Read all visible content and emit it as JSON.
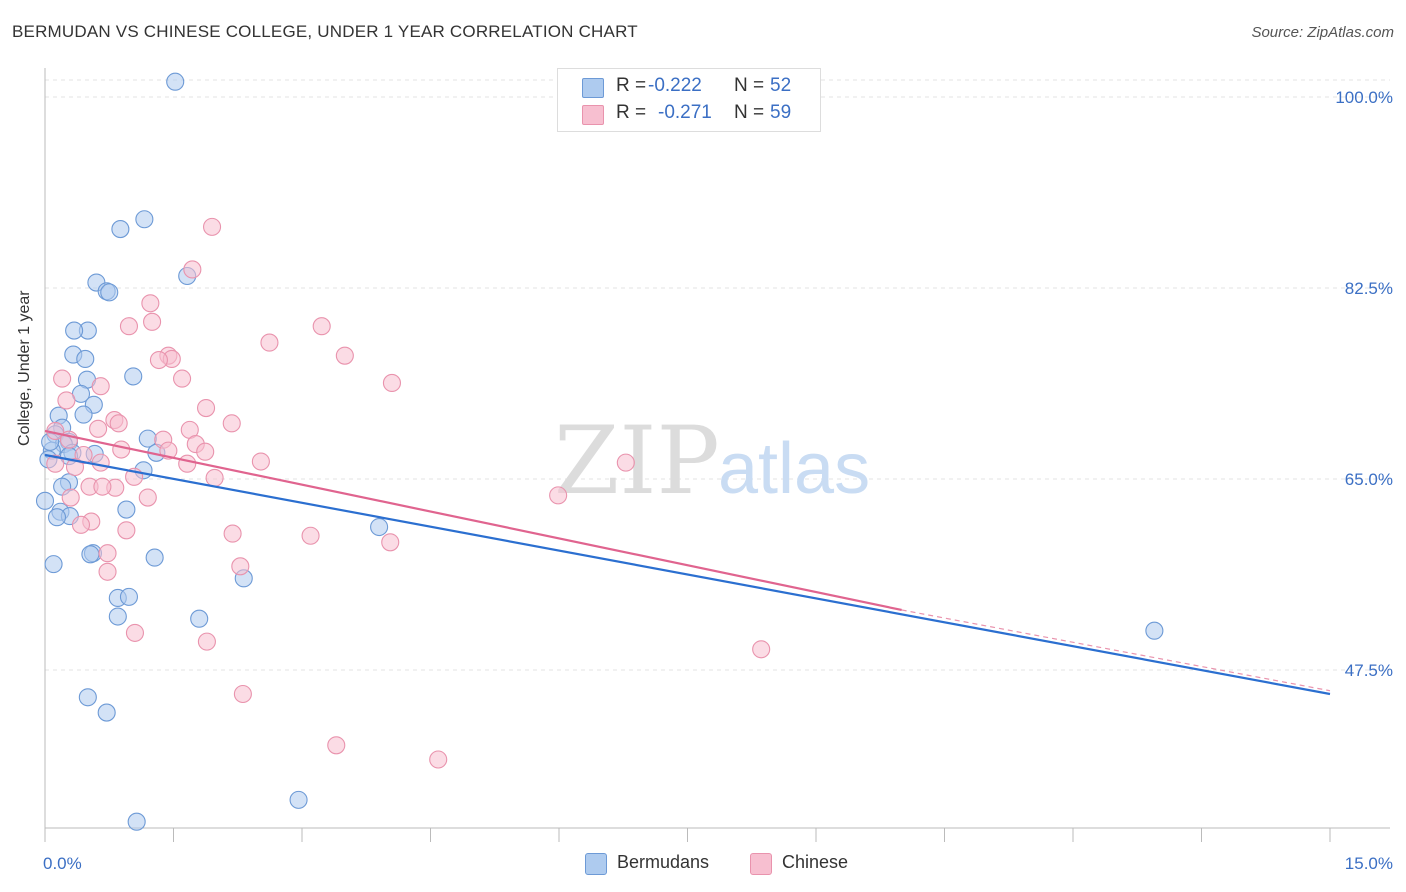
{
  "header": {
    "title": "BERMUDAN VS CHINESE COLLEGE, UNDER 1 YEAR CORRELATION CHART",
    "source": "Source: ZipAtlas.com"
  },
  "watermark": {
    "zip": "ZIP",
    "atlas": "atlas"
  },
  "legend": {
    "r_label": "R =",
    "n_label": "N =",
    "rows": [
      {
        "name": "Bermudans",
        "r": "-0.222",
        "n": "52"
      },
      {
        "name": "Chinese",
        "r": "-0.271",
        "n": "59"
      }
    ]
  },
  "colors": {
    "bermudans_fill": "#aecbef",
    "bermudans_stroke": "#6d9ad6",
    "bermudans_line": "#2b6fd0",
    "chinese_fill": "#f7bfd0",
    "chinese_stroke": "#e993ad",
    "chinese_line": "#e0648f",
    "tick_text": "#3b6fc4",
    "grid": "#e3e3e3"
  },
  "chart_data": {
    "type": "scatter",
    "title": "BERMUDAN VS CHINESE COLLEGE, UNDER 1 YEAR CORRELATION CHART",
    "xlabel": "",
    "ylabel": "College, Under 1 year",
    "xlim": [
      0,
      15
    ],
    "ylim": [
      31,
      102
    ],
    "x_tick_labels": [
      {
        "value": 0,
        "label": "0.0%"
      },
      {
        "value": 15,
        "label": "15.0%"
      }
    ],
    "x_minor_ticks": [
      0,
      1.5,
      3,
      4.5,
      6,
      7.5,
      9,
      10.5,
      12,
      13.5,
      15
    ],
    "y_ticks": [
      {
        "value": 100,
        "label": "100.0%"
      },
      {
        "value": 82.5,
        "label": "82.5%"
      },
      {
        "value": 65,
        "label": "65.0%"
      },
      {
        "value": 47.5,
        "label": "47.5%"
      }
    ],
    "series": [
      {
        "name": "Bermudans",
        "r": -0.222,
        "n": 52,
        "trend": {
          "x0": 0,
          "y0": 67.2,
          "x1": 15,
          "y1": 45.3
        },
        "points": [
          [
            1.52,
            101.4
          ],
          [
            1.16,
            88.8
          ],
          [
            0.88,
            87.9
          ],
          [
            1.66,
            83.6
          ],
          [
            0.6,
            83.0
          ],
          [
            0.72,
            82.2
          ],
          [
            0.75,
            82.1
          ],
          [
            0.5,
            78.6
          ],
          [
            0.34,
            78.6
          ],
          [
            0.33,
            76.4
          ],
          [
            0.47,
            76.0
          ],
          [
            1.03,
            74.4
          ],
          [
            0.49,
            74.1
          ],
          [
            0.42,
            72.8
          ],
          [
            0.57,
            71.8
          ],
          [
            0.45,
            70.9
          ],
          [
            0.16,
            70.8
          ],
          [
            0.2,
            69.7
          ],
          [
            0.12,
            69.1
          ],
          [
            1.2,
            68.7
          ],
          [
            0.28,
            68.4
          ],
          [
            0.22,
            68.2
          ],
          [
            0.08,
            67.6
          ],
          [
            0.32,
            67.4
          ],
          [
            0.58,
            67.3
          ],
          [
            1.3,
            67.4
          ],
          [
            0.04,
            66.8
          ],
          [
            0.28,
            67.1
          ],
          [
            1.15,
            65.8
          ],
          [
            0.28,
            64.7
          ],
          [
            0.2,
            64.3
          ],
          [
            0.95,
            62.2
          ],
          [
            0.18,
            62.0
          ],
          [
            0.29,
            61.6
          ],
          [
            0.14,
            61.5
          ],
          [
            3.9,
            60.6
          ],
          [
            0.56,
            58.2
          ],
          [
            0.53,
            58.1
          ],
          [
            1.28,
            57.8
          ],
          [
            0.1,
            57.2
          ],
          [
            2.32,
            55.9
          ],
          [
            0.85,
            54.1
          ],
          [
            0.98,
            54.2
          ],
          [
            1.8,
            52.2
          ],
          [
            0.85,
            52.4
          ],
          [
            12.95,
            51.1
          ],
          [
            0.5,
            45.0
          ],
          [
            0.72,
            43.6
          ],
          [
            2.96,
            35.6
          ],
          [
            1.07,
            33.6
          ],
          [
            0.0,
            63.0
          ],
          [
            0.06,
            68.4
          ]
        ]
      },
      {
        "name": "Chinese",
        "r": -0.271,
        "n": 59,
        "trend": {
          "x0": 0,
          "y0": 69.4,
          "x1": 10.0,
          "y1": 53.0
        },
        "trend_dashed": {
          "x0": 10.0,
          "y0": 53.0,
          "x1": 15,
          "y1": 45.6
        },
        "points": [
          [
            1.95,
            88.1
          ],
          [
            1.72,
            84.2
          ],
          [
            1.23,
            81.1
          ],
          [
            1.25,
            79.4
          ],
          [
            0.98,
            79.0
          ],
          [
            3.23,
            79.0
          ],
          [
            2.62,
            77.5
          ],
          [
            1.44,
            76.3
          ],
          [
            1.48,
            76.0
          ],
          [
            3.5,
            76.3
          ],
          [
            1.33,
            75.9
          ],
          [
            1.6,
            74.2
          ],
          [
            0.2,
            74.2
          ],
          [
            4.05,
            73.8
          ],
          [
            0.65,
            73.5
          ],
          [
            0.25,
            72.2
          ],
          [
            1.88,
            71.5
          ],
          [
            0.81,
            70.4
          ],
          [
            0.86,
            70.1
          ],
          [
            2.18,
            70.1
          ],
          [
            0.62,
            69.6
          ],
          [
            1.69,
            69.5
          ],
          [
            0.12,
            69.4
          ],
          [
            1.38,
            68.6
          ],
          [
            1.76,
            68.2
          ],
          [
            0.28,
            68.6
          ],
          [
            0.89,
            67.7
          ],
          [
            1.44,
            67.6
          ],
          [
            1.87,
            67.5
          ],
          [
            0.45,
            67.2
          ],
          [
            0.65,
            66.5
          ],
          [
            2.52,
            66.6
          ],
          [
            6.78,
            66.5
          ],
          [
            0.12,
            66.4
          ],
          [
            0.35,
            66.1
          ],
          [
            1.66,
            66.4
          ],
          [
            0.82,
            64.2
          ],
          [
            0.52,
            64.3
          ],
          [
            1.98,
            65.1
          ],
          [
            1.04,
            65.2
          ],
          [
            0.67,
            64.3
          ],
          [
            1.2,
            63.3
          ],
          [
            0.3,
            63.3
          ],
          [
            5.99,
            63.5
          ],
          [
            0.54,
            61.1
          ],
          [
            0.42,
            60.8
          ],
          [
            0.95,
            60.3
          ],
          [
            2.19,
            60.0
          ],
          [
            3.1,
            59.8
          ],
          [
            4.03,
            59.2
          ],
          [
            0.73,
            58.2
          ],
          [
            0.73,
            56.5
          ],
          [
            2.28,
            57.0
          ],
          [
            1.05,
            50.9
          ],
          [
            1.89,
            50.1
          ],
          [
            8.36,
            49.4
          ],
          [
            2.31,
            45.3
          ],
          [
            3.4,
            40.6
          ],
          [
            4.59,
            39.3
          ]
        ]
      }
    ]
  },
  "bottom_legend": [
    {
      "name": "Bermudans"
    },
    {
      "name": "Chinese"
    }
  ]
}
